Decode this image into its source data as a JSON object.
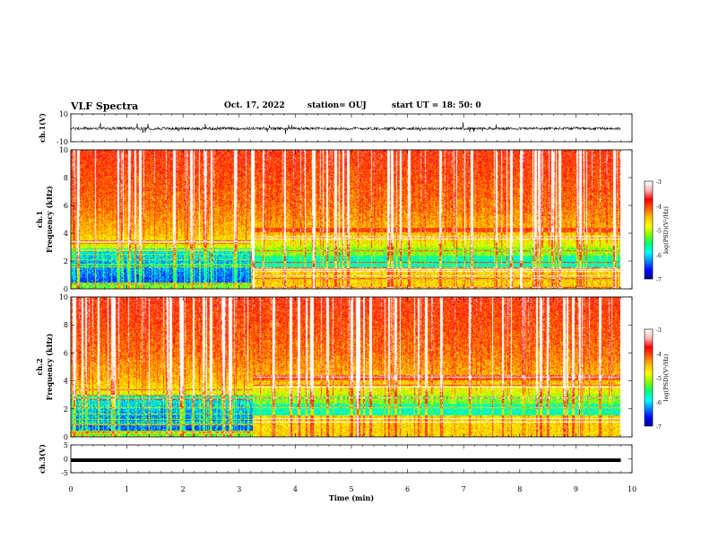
{
  "header": {
    "title": "VLF Spectra",
    "date": "Oct. 17, 2022",
    "station": "station= OUJ",
    "start": "start  UT  =   18: 50: 0"
  },
  "chart_data": [
    {
      "type": "line",
      "id": "ch1-waveform",
      "ylabel": "ch.1(V)",
      "ylim": [
        -10,
        10
      ],
      "yticks": [
        "10",
        "-10"
      ],
      "xlim": [
        0,
        10
      ],
      "series": [
        {
          "values_description_hidden": true
        }
      ],
      "baseline": -0.5,
      "noise_amplitude": 1.0,
      "color": "#000000"
    },
    {
      "type": "heatmap",
      "id": "ch1-spectrogram",
      "ylabel_channel": "ch.1",
      "ylabel": "Frequency (kHz)",
      "ylim": [
        0,
        10
      ],
      "yticks": [
        "0",
        "2",
        "4",
        "6",
        "8",
        "10"
      ],
      "xlim": [
        0,
        10
      ],
      "data_end_min": 9.8,
      "transition_min": 3.25,
      "colorbar": {
        "label": "log(PSD)(V²/Hz)",
        "range": [
          -7,
          -3
        ],
        "ticks": [
          "-3",
          "-4",
          "-5",
          "-6",
          "-7"
        ]
      }
    },
    {
      "type": "heatmap",
      "id": "ch2-spectrogram",
      "ylabel_channel": "ch.2",
      "ylabel": "Frequency (kHz)",
      "ylim": [
        0,
        10
      ],
      "yticks": [
        "0",
        "2",
        "4",
        "6",
        "8",
        "10"
      ],
      "xlim": [
        0,
        10
      ],
      "data_end_min": 9.8,
      "transition_min": 3.25,
      "colorbar": {
        "label": "log(PSD)(V²/Hz)",
        "range": [
          -7,
          -3
        ],
        "ticks": [
          "-3",
          "-4",
          "-5",
          "-6",
          "-7"
        ]
      }
    },
    {
      "type": "line",
      "id": "ch3-signal",
      "ylabel": "ch.3(V)",
      "ylim": [
        -5,
        5
      ],
      "yticks": [
        "5",
        "0",
        "-5"
      ],
      "xlim": [
        0,
        10
      ],
      "constant_value": -0.5,
      "color": "#000000"
    }
  ],
  "xaxis": {
    "label": "Time  (min)",
    "ticks": [
      "0",
      "1",
      "2",
      "3",
      "4",
      "5",
      "6",
      "7",
      "8",
      "9",
      "10"
    ]
  },
  "colormap": [
    "#00008b",
    "#0000ff",
    "#0080ff",
    "#00ffff",
    "#00ff80",
    "#80ff00",
    "#ffff00",
    "#ffc000",
    "#ff6000",
    "#ff0000",
    "#ffb0b0",
    "#ffffff"
  ]
}
